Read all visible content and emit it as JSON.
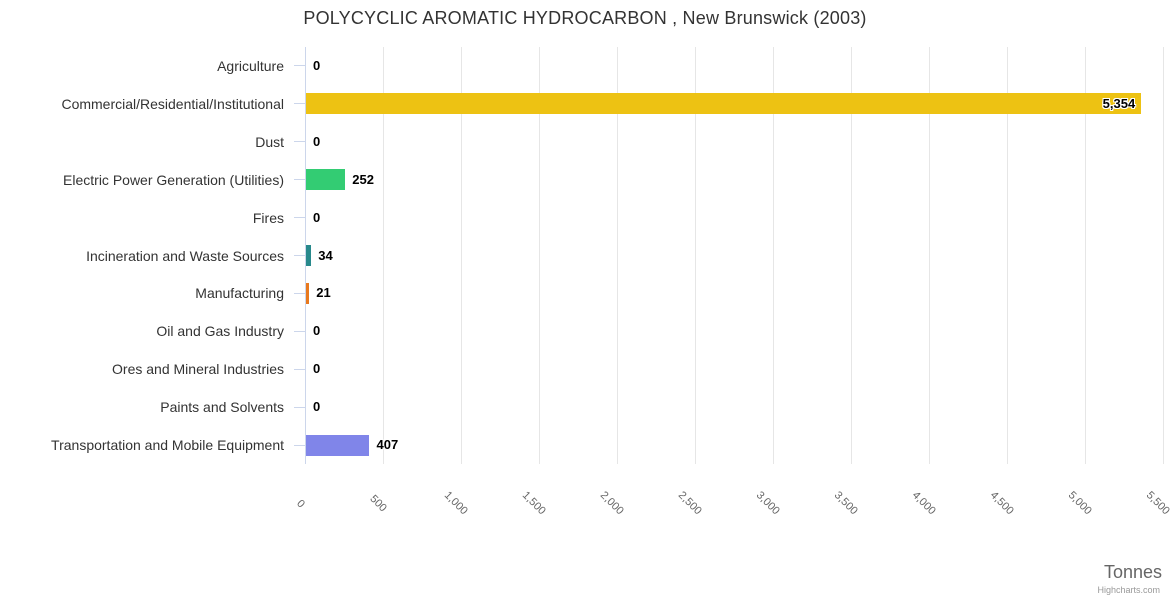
{
  "chart_data": {
    "type": "bar",
    "orientation": "horizontal",
    "title": "POLYCYCLIC AROMATIC HYDROCARBON , New Brunswick (2003)",
    "categories": [
      "Agriculture",
      "Commercial/Residential/Institutional",
      "Dust",
      "Electric Power Generation (Utilities)",
      "Fires",
      "Incineration and Waste Sources",
      "Manufacturing",
      "Oil and Gas Industry",
      "Ores and Mineral Industries",
      "Paints and Solvents",
      "Transportation and Mobile Equipment"
    ],
    "values": [
      0,
      5354,
      0,
      252,
      0,
      34,
      21,
      0,
      0,
      0,
      407
    ],
    "value_labels": [
      "0",
      "5,354",
      "0",
      "252",
      "0",
      "34",
      "21",
      "0",
      "0",
      "0",
      "407"
    ],
    "bar_colors": [
      null,
      "#edc213",
      null,
      "#33cc73",
      null,
      "#28898c",
      "#e8791e",
      null,
      null,
      null,
      "#8085e9"
    ],
    "xlabel": "Tonnes",
    "ylabel": "",
    "xlim": [
      0,
      5500
    ],
    "tick_interval": 500,
    "x_ticks": [
      "0",
      "500",
      "1,000",
      "1,500",
      "2,000",
      "2,500",
      "3,000",
      "3,500",
      "4,000",
      "4,500",
      "5,000",
      "5,500"
    ],
    "grid": true,
    "legend": false
  },
  "colors": {
    "gridline": "#e6e6e6",
    "axis_line": "#ccd6eb",
    "title_text": "#333333",
    "category_text": "#333333",
    "tick_text": "#666666",
    "value_text": "#000000"
  },
  "credits": "Highcharts.com"
}
